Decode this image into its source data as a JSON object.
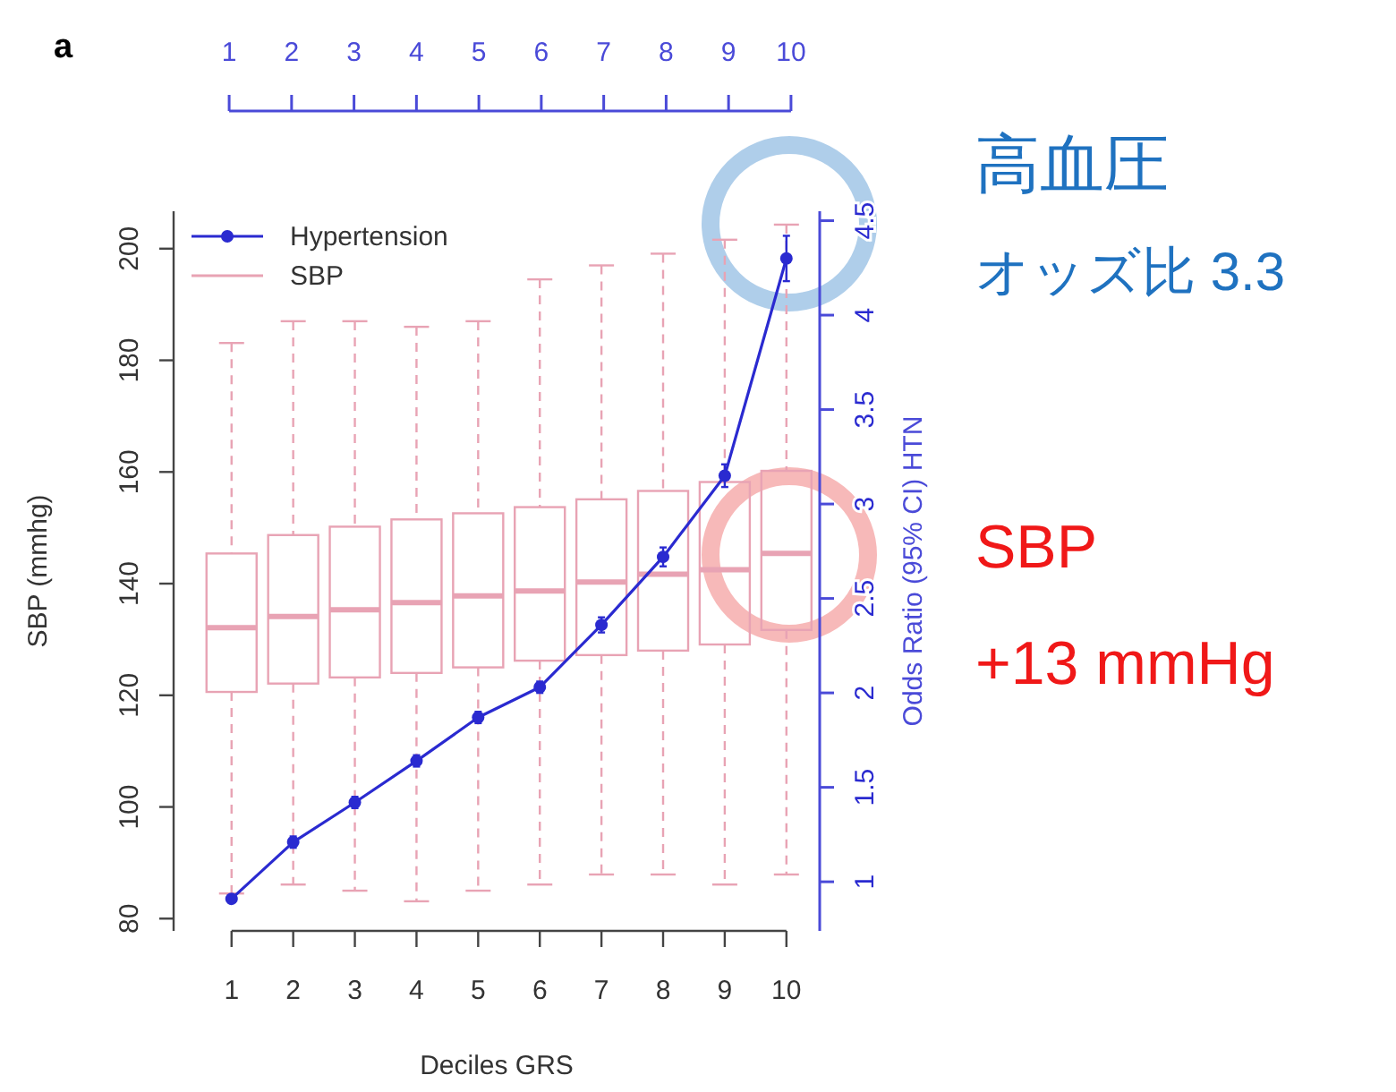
{
  "chart_data": {
    "type": "box",
    "xlabel": "Deciles GRS",
    "ylabel": "SBP (mmhg)",
    "y2label": "Odds Ratio (95% CI) HTN",
    "categories": [
      "1",
      "2",
      "3",
      "4",
      "5",
      "6",
      "7",
      "8",
      "9",
      "10"
    ],
    "ylim": [
      77.8,
      206.7
    ],
    "yticks": [
      80,
      100,
      120,
      140,
      160,
      180,
      200
    ],
    "y2lim": [
      0.74,
      4.55
    ],
    "y2ticks": [
      1,
      1.5,
      2,
      2.5,
      3,
      3.5,
      4,
      4.5
    ],
    "x2lim": [
      0.11,
      10.46
    ],
    "x2ticks": [
      1,
      2,
      3,
      4,
      5,
      6,
      7,
      8,
      9,
      10
    ],
    "legend": "top left",
    "grid": false,
    "series": [
      {
        "name": "Hypertension",
        "type": "line",
        "axis": "y2",
        "color": "#2a2ad0",
        "marker": "circle",
        "line_style": "solid",
        "values": [
          0.91,
          1.21,
          1.42,
          1.64,
          1.87,
          2.03,
          2.36,
          2.72,
          3.15,
          4.3
        ],
        "errors": [
          null,
          0.03,
          0.03,
          0.03,
          0.03,
          0.03,
          0.04,
          0.05,
          0.06,
          0.12
        ]
      },
      {
        "name": "SBP",
        "type": "box",
        "color": "#e8a3b4",
        "boxes": [
          {
            "low": 84.5,
            "q1": 120.6,
            "median": 132.1,
            "q3": 145.4,
            "high": 183.1
          },
          {
            "low": 86.1,
            "q1": 122.1,
            "median": 134.1,
            "q3": 148.7,
            "high": 187
          },
          {
            "low": 85.0,
            "q1": 123.2,
            "median": 135.3,
            "q3": 150.2,
            "high": 187
          },
          {
            "low": 83.1,
            "q1": 124.0,
            "median": 136.6,
            "q3": 151.5,
            "high": 186
          },
          {
            "low": 85.0,
            "q1": 125.0,
            "median": 137.8,
            "q3": 152.6,
            "high": 187
          },
          {
            "low": 86.1,
            "q1": 126.2,
            "median": 138.7,
            "q3": 153.7,
            "high": 194.5
          },
          {
            "low": 87.9,
            "q1": 127.2,
            "median": 140.3,
            "q3": 155.1,
            "high": 197.0
          },
          {
            "low": 87.9,
            "q1": 128.0,
            "median": 141.7,
            "q3": 156.6,
            "high": 199.1
          },
          {
            "low": 86.1,
            "q1": 129.1,
            "median": 142.5,
            "q3": 158.2,
            "high": 201.6
          },
          {
            "low": 87.9,
            "q1": 131.7,
            "median": 145.4,
            "q3": 160.2,
            "high": 204.3
          }
        ]
      }
    ],
    "annotations": [
      "a",
      "高血圧",
      "オッズ比 3.3",
      "SBP",
      "+13 mmHg"
    ]
  }
}
